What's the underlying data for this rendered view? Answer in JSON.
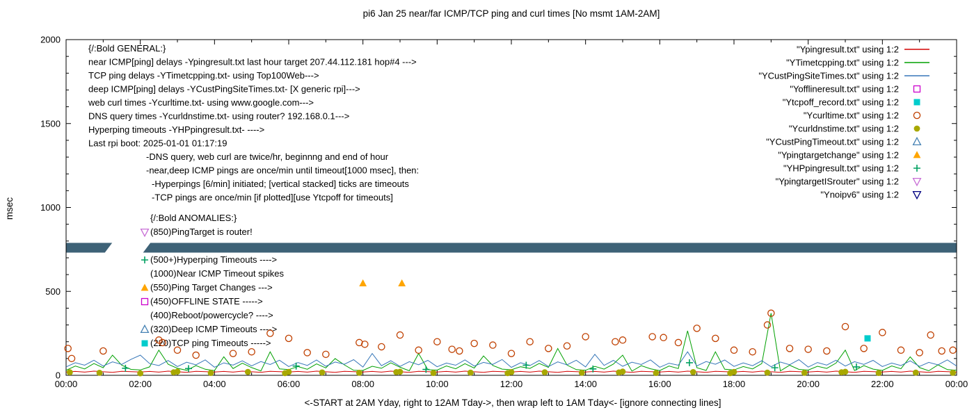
{
  "chart_data": {
    "type": "line",
    "title": "pi6 Jan 25  near/far ICMP/TCP ping and curl times [No msmt 1AM-2AM]",
    "xlabel": "<-START at 2AM Yday, right to 12AM Tday->, then wrap left to 1AM Tday<- [ignore connecting lines]",
    "ylabel": "msec",
    "xlim": [
      0,
      24
    ],
    "ylim": [
      0,
      2000
    ],
    "x_tick_labels": [
      "00:00",
      "02:00",
      "04:00",
      "06:00",
      "08:00",
      "10:00",
      "12:00",
      "14:00",
      "16:00",
      "18:00",
      "20:00",
      "22:00",
      "00:00"
    ],
    "y_tick_values": [
      0,
      500,
      1000,
      1500,
      2000
    ],
    "palette": {
      "red": "#d40000",
      "green": "#00a000",
      "blue": "#3676b8",
      "magenta": "#cc00cc",
      "cyan": "#00cccc",
      "dark_orange": "#c04000",
      "olive": "#a8a800",
      "steel_blue": "#4682b4",
      "orange": "#ffa500",
      "dark_green": "#00a060",
      "violet": "#c86fd6",
      "navy": "#000080",
      "band": "#3e6277"
    },
    "series": [
      {
        "name": "Ypingresult",
        "legend_label": "\"Ypingresult.txt\" using 1:2",
        "style": "line",
        "color": "red",
        "values": [
          20,
          23,
          19,
          25,
          21,
          18,
          24,
          22,
          20,
          23,
          19,
          25,
          21,
          18,
          24,
          22,
          20,
          23,
          19,
          25,
          21,
          18,
          24,
          22,
          20,
          23,
          19,
          25,
          21,
          18,
          24,
          22,
          20,
          23,
          19,
          25,
          21,
          18,
          24,
          22,
          20,
          23,
          19,
          25,
          21,
          18,
          24,
          22,
          20,
          23,
          19,
          25,
          21,
          18,
          24,
          22,
          20,
          23,
          19,
          25,
          21,
          18,
          24,
          22,
          20,
          23,
          19,
          25,
          21,
          18,
          24,
          22,
          20,
          23,
          19,
          25,
          21,
          18,
          24,
          22,
          20,
          23,
          19,
          25,
          21,
          18,
          24,
          22,
          20,
          23,
          19,
          25,
          21,
          18,
          24,
          22,
          20
        ]
      },
      {
        "name": "YTimetcpping",
        "legend_label": "\"YTimetcpping.txt\" using 1:2",
        "style": "line",
        "color": "green",
        "values": [
          30,
          55,
          38,
          70,
          45,
          120,
          60,
          35,
          32,
          50,
          150,
          66,
          42,
          30,
          58,
          36,
          28,
          110,
          40,
          72,
          46,
          26,
          140,
          38,
          34,
          52,
          36,
          68,
          44,
          100,
          62,
          30,
          29,
          54,
          42,
          74,
          48,
          27,
          130,
          33,
          31,
          56,
          39,
          69,
          43,
          115,
          59,
          37,
          33,
          51,
          41,
          71,
          47,
          160,
          61,
          34,
          30,
          53,
          37,
          67,
          120,
          25,
          57,
          39,
          28,
          55,
          40,
          265,
          45,
          29,
          140,
          36,
          32,
          52,
          38,
          70,
          370,
          26,
          60,
          35,
          31,
          54,
          41,
          73,
          150,
          28,
          58,
          37,
          29,
          56,
          39,
          110,
          46,
          27,
          62,
          34,
          30
        ]
      },
      {
        "name": "YCustPingSiteTimes",
        "legend_label": "\"YCustPingSiteTimes.txt\" using 1:2",
        "style": "line",
        "color": "blue",
        "values": [
          50,
          75,
          60,
          90,
          55,
          80,
          65,
          95,
          120,
          70,
          58,
          88,
          52,
          78,
          62,
          92,
          48,
          74,
          61,
          86,
          56,
          82,
          64,
          90,
          52,
          76,
          59,
          91,
          54,
          79,
          66,
          93,
          49,
          130,
          57,
          87,
          53,
          81,
          63,
          89,
          51,
          73,
          60,
          92,
          55,
          77,
          65,
          94,
          47,
          75,
          58,
          88,
          52,
          80,
          62,
          90,
          50,
          125,
          59,
          89,
          54,
          78,
          64,
          92,
          48,
          72,
          60,
          140,
          56,
          82,
          66,
          91,
          53,
          74,
          57,
          87,
          51,
          79,
          63,
          93,
          49,
          76,
          61,
          90,
          55,
          81,
          65,
          89,
          52,
          73,
          58,
          86,
          53,
          77,
          62,
          92,
          55
        ]
      },
      {
        "name": "Yofflineresult",
        "legend_label": "\"Yofflineresult.txt\" using 1:2",
        "style": "square-open",
        "color": "magenta",
        "points": []
      },
      {
        "name": "Ytcpoff_record",
        "legend_label": "\"Ytcpoff_record.txt\" using 1:2",
        "style": "square-filled",
        "color": "cyan",
        "points": [
          [
            21.6,
            220
          ]
        ]
      },
      {
        "name": "Ycurltime",
        "legend_label": "\"Ycurltime.txt\" using 1:2",
        "style": "circle-open",
        "color": "dark_orange",
        "points": [
          [
            0.05,
            160
          ],
          [
            0.15,
            100
          ],
          [
            1.0,
            145
          ],
          [
            2.5,
            210
          ],
          [
            2.6,
            195
          ],
          [
            3.0,
            150
          ],
          [
            3.5,
            120
          ],
          [
            4.5,
            130
          ],
          [
            5.0,
            140
          ],
          [
            5.5,
            250
          ],
          [
            6.0,
            220
          ],
          [
            6.5,
            135
          ],
          [
            7.0,
            125
          ],
          [
            7.9,
            195
          ],
          [
            8.05,
            185
          ],
          [
            8.5,
            170
          ],
          [
            9.0,
            240
          ],
          [
            9.5,
            150
          ],
          [
            10.0,
            200
          ],
          [
            10.4,
            155
          ],
          [
            10.6,
            145
          ],
          [
            11.0,
            190
          ],
          [
            11.5,
            180
          ],
          [
            12.0,
            130
          ],
          [
            12.5,
            200
          ],
          [
            13.0,
            160
          ],
          [
            13.5,
            175
          ],
          [
            14.0,
            230
          ],
          [
            14.8,
            200
          ],
          [
            15.0,
            210
          ],
          [
            15.8,
            230
          ],
          [
            16.1,
            225
          ],
          [
            16.5,
            195
          ],
          [
            17.0,
            280
          ],
          [
            17.5,
            220
          ],
          [
            18.0,
            150
          ],
          [
            18.5,
            140
          ],
          [
            18.9,
            300
          ],
          [
            19.0,
            370
          ],
          [
            19.5,
            160
          ],
          [
            20.0,
            155
          ],
          [
            20.5,
            145
          ],
          [
            21.0,
            290
          ],
          [
            21.5,
            160
          ],
          [
            22.0,
            255
          ],
          [
            22.5,
            150
          ],
          [
            23.0,
            135
          ],
          [
            23.3,
            240
          ],
          [
            23.6,
            145
          ],
          [
            23.9,
            150
          ]
        ]
      },
      {
        "name": "Ycurldnstime",
        "legend_label": "\"Ycurldnstime.txt\" using 1:2",
        "style": "circle-filled",
        "color": "olive",
        "points": [
          [
            0.1,
            18
          ],
          [
            0.9,
            15
          ],
          [
            2.0,
            12
          ],
          [
            2.9,
            18
          ],
          [
            3.0,
            22
          ],
          [
            3.9,
            14
          ],
          [
            4.9,
            20
          ],
          [
            5.9,
            13
          ],
          [
            6.0,
            20
          ],
          [
            6.9,
            17
          ],
          [
            7.9,
            15
          ],
          [
            8.9,
            19
          ],
          [
            9.0,
            21
          ],
          [
            9.9,
            14
          ],
          [
            10.9,
            16
          ],
          [
            11.9,
            13
          ],
          [
            12.0,
            19
          ],
          [
            12.9,
            18
          ],
          [
            13.9,
            15
          ],
          [
            14.9,
            17
          ],
          [
            15.0,
            22
          ],
          [
            15.9,
            14
          ],
          [
            16.9,
            19
          ],
          [
            17.9,
            13
          ],
          [
            18.0,
            20
          ],
          [
            18.9,
            16
          ],
          [
            19.9,
            15
          ],
          [
            20.9,
            18
          ],
          [
            21.0,
            21
          ],
          [
            21.9,
            14
          ],
          [
            22.9,
            16
          ],
          [
            23.9,
            15
          ]
        ]
      },
      {
        "name": "YCustPingTimeout",
        "legend_label": "\"YCustPingTimeout.txt\" using 1:2",
        "style": "triangle-up-open",
        "color": "steel_blue",
        "points": []
      },
      {
        "name": "Ypingtargetchange",
        "legend_label": "\"Ypingtargetchange\" using 1:2",
        "style": "triangle-up-filled",
        "color": "orange",
        "points": [
          [
            8.0,
            548
          ],
          [
            9.05,
            548
          ]
        ]
      },
      {
        "name": "YHPpingresult",
        "legend_label": "\"YHPpingresult.txt\" using 1:2",
        "style": "plus",
        "color": "dark_green",
        "points": [
          [
            1.6,
            42
          ],
          [
            3.3,
            40
          ],
          [
            6.2,
            55
          ],
          [
            9.7,
            35
          ],
          [
            12.4,
            60
          ],
          [
            14.2,
            38
          ],
          [
            16.8,
            75
          ],
          [
            19.1,
            45
          ],
          [
            21.3,
            50
          ]
        ]
      },
      {
        "name": "YpingtargetISrouter",
        "legend_label": "\"YpingtargetISrouter\" using 1:2",
        "style": "triangle-down-open",
        "color": "violet",
        "points": []
      },
      {
        "name": "Ynoipv6",
        "legend_label": "\"Ynoipv6\" using 1:2",
        "style": "triangle-down-open",
        "color": "navy",
        "points": []
      }
    ],
    "annotations": {
      "general": {
        "lines": [
          {
            "text": "{/:Bold GENERAL:}",
            "indent": 0
          },
          {
            "text": "near ICMP[ping] delays -Ypingresult.txt last hour target 207.44.112.181 hop#4 --->",
            "indent": 0
          },
          {
            "text": "TCP ping delays -YTimetcpping.txt- using Top100Web--->",
            "indent": 0
          },
          {
            "text": "deep ICMP[ping] delays -YCustPingSiteTimes.txt- [X generic rpi]--->",
            "indent": 0
          },
          {
            "text": "web curl times -Ycurltime.txt- using www.google.com--->",
            "indent": 0
          },
          {
            "text": "DNS query times -Ycurldnstime.txt- using router? 192.168.0.1--->",
            "indent": 0
          },
          {
            "text": "Hyperping timeouts -YHPpingresult.txt- ---->",
            "indent": 0
          },
          {
            "text": "Last rpi boot: 2025-01-01 01:17:19",
            "indent": 0
          },
          {
            "text": "-DNS query, web curl are twice/hr, beginnng and end of hour",
            "indent": 1
          },
          {
            "text": "-near,deep ICMP pings are once/min until timeout[1000 msec], then:",
            "indent": 1
          },
          {
            "text": "-Hyperpings [6/min] initiated; [vertical stacked] ticks are timeouts",
            "indent": 2
          },
          {
            "text": "-TCP pings are once/min [if plotted][use Ytcpoff for timeouts]",
            "indent": 2
          }
        ]
      },
      "anomalies": {
        "lines": [
          {
            "text": "{/:Bold ANOMALIES:}",
            "marker": null
          },
          {
            "text": "(850)PingTarget is router!",
            "marker": "YpingtargetISrouter"
          },
          {
            "text": "",
            "marker": null
          },
          {
            "text": "(500+)Hyperping Timeouts ---->",
            "marker": "YHPpingresult"
          },
          {
            "text": "(1000)Near ICMP Timeout spikes",
            "marker": null
          },
          {
            "text": "(550)Ping Target Changes --->",
            "marker": "Ypingtargetchange"
          },
          {
            "text": "(450)OFFLINE STATE ----->",
            "marker": "Yofflineresult"
          },
          {
            "text": "(400)Reboot/powercycle? ---->",
            "marker": null
          },
          {
            "text": "(320)Deep ICMP Timeouts ---->",
            "marker": "YCustPingTimeout"
          },
          {
            "text": "(220)TCP ping Timeouts ----->",
            "marker": "Ytcpoff_record"
          }
        ]
      }
    },
    "band": {
      "y_msec": 760,
      "half_msec": 29,
      "gap_hours": [
        1.03,
        2.06
      ],
      "color": "band"
    }
  }
}
